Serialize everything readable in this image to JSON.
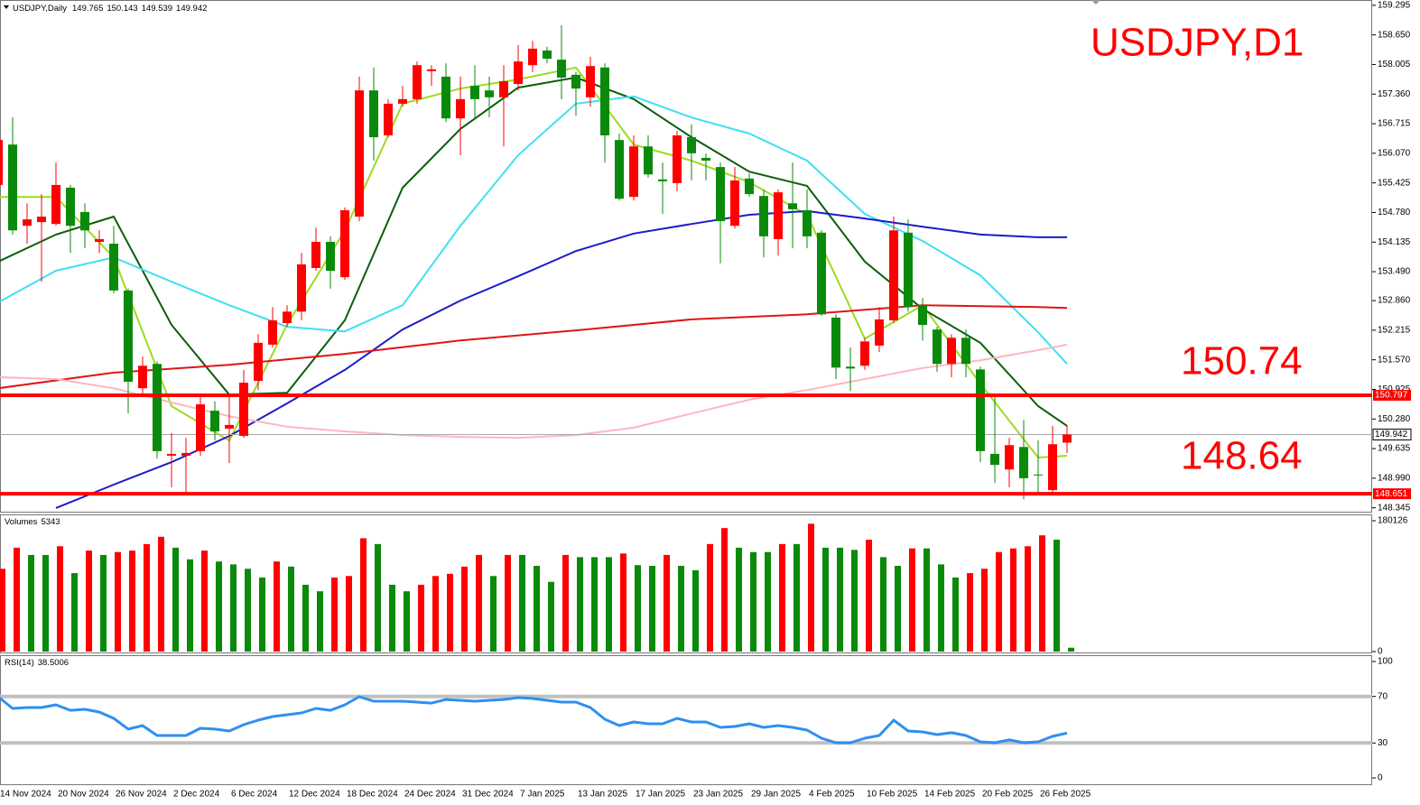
{
  "chart_data": [
    {
      "type": "candlestick",
      "title": "USDJPY,Daily",
      "watermark": "USDJPY,D1",
      "categories": [
        "14 Nov 2024",
        null,
        null,
        null,
        "20 Nov 2024",
        null,
        null,
        null,
        "26 Nov 2024",
        null,
        null,
        null,
        "2 Dec 2024",
        null,
        null,
        null,
        "6 Dec 2024",
        null,
        null,
        null,
        "12 Dec 2024",
        null,
        null,
        null,
        "18 Dec 2024",
        null,
        null,
        null,
        "24 Dec 2024",
        null,
        null,
        null,
        "31 Dec 2024",
        null,
        null,
        null,
        "7 Jan 2025",
        null,
        null,
        null,
        "13 Jan 2025",
        null,
        null,
        null,
        "17 Jan 2025",
        null,
        null,
        null,
        "23 Jan 2025",
        null,
        null,
        null,
        "29 Jan 2025",
        null,
        null,
        null,
        "4 Feb 2025",
        null,
        null,
        null,
        "10 Feb 2025",
        null,
        null,
        null,
        "14 Feb 2025",
        null,
        null,
        null,
        "20 Feb 2025",
        null,
        null,
        null,
        "26 Feb 2025",
        null,
        null
      ],
      "open": [
        155.38,
        156.26,
        154.49,
        154.57,
        154.53,
        155.32,
        154.79,
        154.14,
        154.1,
        153.08,
        150.95,
        151.48,
        149.48,
        149.48,
        149.58,
        150.46,
        150.07,
        149.91,
        151.11,
        151.9,
        152.37,
        152.62,
        153.57,
        154.14,
        153.37,
        154.69,
        157.44,
        156.46,
        157.15,
        157.25,
        157.86,
        157.74,
        156.83,
        157.54,
        157.44,
        157.29,
        157.58,
        157.99,
        158.31,
        158.11,
        157.78,
        157.29,
        157.94,
        156.36,
        155.12,
        156.22,
        155.5,
        155.42,
        156.42,
        155.97,
        155.77,
        154.49,
        155.52,
        155.14,
        154.2,
        154.98,
        154.83,
        154.34,
        152.49,
        151.42,
        151.44,
        151.88,
        152.43,
        154.34,
        152.76,
        152.23,
        151.48,
        152.05,
        151.36,
        149.52,
        149.18,
        149.67,
        149.07,
        148.73,
        149.765
      ],
      "high": [
        156.46,
        156.85,
        154.98,
        155.18,
        155.87,
        155.38,
        154.98,
        154.39,
        154.49,
        153.12,
        151.64,
        151.54,
        149.97,
        149.87,
        150.76,
        150.66,
        150.76,
        151.35,
        152.13,
        152.72,
        152.76,
        153.9,
        154.45,
        154.26,
        154.89,
        157.74,
        157.94,
        157.25,
        157.54,
        158.07,
        157.99,
        158.03,
        157.74,
        157.99,
        157.74,
        157.99,
        158.43,
        158.52,
        158.39,
        158.86,
        157.84,
        158.17,
        158.03,
        156.5,
        156.46,
        156.46,
        155.87,
        156.56,
        156.7,
        156.07,
        155.87,
        155.77,
        155.63,
        155.28,
        155.28,
        155.87,
        155.28,
        154.39,
        152.56,
        151.84,
        152.05,
        152.72,
        154.69,
        154.63,
        152.92,
        152.29,
        152.13,
        152.23,
        151.42,
        150.76,
        149.87,
        150.26,
        149.81,
        150.13,
        150.143
      ],
      "low": [
        155.28,
        154.3,
        154.1,
        153.27,
        154.49,
        153.9,
        154.0,
        153.9,
        153.02,
        150.4,
        150.79,
        149.42,
        148.79,
        148.65,
        149.48,
        149.81,
        149.32,
        149.87,
        150.91,
        151.84,
        152.29,
        152.43,
        153.51,
        153.12,
        153.31,
        154.59,
        155.91,
        156.42,
        157.09,
        157.15,
        157.54,
        156.75,
        156.03,
        156.85,
        156.85,
        156.22,
        157.44,
        157.84,
        158.03,
        157.25,
        156.89,
        157.09,
        155.87,
        155.04,
        155.04,
        155.54,
        154.75,
        155.24,
        155.48,
        155.48,
        153.67,
        154.43,
        155.12,
        153.8,
        153.84,
        154.0,
        154.0,
        152.53,
        151.15,
        150.89,
        151.35,
        151.74,
        152.37,
        152.62,
        151.99,
        151.31,
        151.19,
        151.19,
        149.34,
        148.89,
        148.79,
        148.53,
        148.63,
        148.63,
        149.539
      ],
      "close": [
        156.36,
        154.39,
        154.63,
        154.69,
        155.38,
        154.49,
        154.39,
        154.2,
        153.08,
        151.09,
        151.44,
        149.58,
        149.52,
        149.54,
        150.6,
        150.01,
        150.15,
        151.07,
        151.94,
        152.43,
        152.62,
        153.65,
        154.14,
        153.51,
        154.83,
        157.44,
        156.42,
        157.15,
        157.25,
        157.99,
        157.9,
        156.83,
        157.25,
        157.25,
        157.29,
        157.64,
        158.07,
        158.35,
        158.13,
        157.72,
        157.48,
        157.97,
        156.46,
        155.08,
        156.22,
        155.61,
        155.46,
        156.46,
        156.07,
        155.91,
        154.59,
        155.48,
        155.18,
        154.26,
        155.22,
        154.85,
        154.26,
        152.56,
        151.4,
        151.38,
        151.97,
        152.45,
        154.39,
        152.72,
        152.33,
        151.48,
        152.05,
        151.48,
        149.58,
        149.28,
        149.71,
        148.99,
        149.05,
        149.73,
        149.942
      ],
      "up_color": "#ff0000",
      "down_color": "#0a8a0a",
      "ylim": [
        148.26,
        159.41
      ],
      "yticks": [
        159.295,
        {
          "value": 158.65,
          "label": "158.650"
        },
        158.005,
        {
          "value": 157.36,
          "label": "157.360"
        },
        156.715,
        {
          "value": 156.07,
          "label": "156.070"
        },
        155.425,
        {
          "value": 154.78,
          "label": "154.780"
        },
        154.135,
        {
          "value": 153.49,
          "label": "153.490"
        },
        {
          "value": 152.86,
          "label": "152.860"
        },
        152.215,
        {
          "value": 151.57,
          "label": "151.570"
        },
        150.925,
        {
          "value": 150.28,
          "label": "150.280"
        },
        149.635,
        {
          "value": 148.99,
          "label": "148.990"
        },
        148.345
      ],
      "moving_averages": [
        {
          "color": "#9bdc1e",
          "x": [
            0,
            4,
            8,
            12,
            16,
            20,
            24,
            28,
            32,
            36,
            40,
            44,
            48,
            52,
            56,
            60,
            64,
            68,
            72,
            74
          ],
          "values": [
            155.12,
            155.12,
            153.8,
            150.56,
            149.81,
            152.33,
            154.39,
            157.15,
            157.48,
            157.68,
            157.94,
            156.26,
            155.91,
            155.44,
            154.73,
            152.03,
            152.76,
            151.05,
            149.44,
            149.48
          ]
        },
        {
          "color": "#0b5e0b",
          "x": [
            0,
            4,
            8,
            12,
            16,
            20,
            24,
            28,
            32,
            36,
            40,
            44,
            48,
            52,
            56,
            60,
            64,
            68,
            72,
            74
          ],
          "values": [
            153.71,
            154.3,
            154.69,
            152.33,
            150.81,
            150.85,
            152.43,
            155.32,
            156.6,
            157.5,
            157.72,
            157.25,
            156.42,
            155.67,
            155.36,
            153.71,
            152.68,
            151.94,
            150.56,
            150.13
          ]
        },
        {
          "color": "#3ee0f2",
          "x": [
            0,
            4,
            8,
            12,
            16,
            20,
            24,
            28,
            32,
            36,
            40,
            44,
            48,
            52,
            56,
            60,
            64,
            68,
            72,
            74
          ],
          "values": [
            152.82,
            153.51,
            153.8,
            153.27,
            152.76,
            152.29,
            152.19,
            152.76,
            154.49,
            156.03,
            157.15,
            157.31,
            156.85,
            156.5,
            155.91,
            154.75,
            154.16,
            153.41,
            152.17,
            151.48
          ]
        },
        {
          "color": "#1c1cc8",
          "x": [
            4,
            8,
            12,
            16,
            20,
            24,
            28,
            32,
            36,
            40,
            44,
            48,
            52,
            56,
            60,
            64,
            68,
            72,
            74
          ],
          "values": [
            148.34,
            148.85,
            149.34,
            149.91,
            150.62,
            151.35,
            152.23,
            152.86,
            153.39,
            153.94,
            154.32,
            154.53,
            154.73,
            154.81,
            154.65,
            154.47,
            154.3,
            154.24,
            154.24
          ]
        },
        {
          "color": "#e01515",
          "x": [
            0,
            8,
            16,
            24,
            32,
            40,
            48,
            56,
            64,
            72,
            74
          ],
          "values": [
            150.95,
            151.29,
            151.46,
            151.7,
            151.99,
            152.21,
            152.45,
            152.56,
            152.76,
            152.72,
            152.7
          ]
        },
        {
          "color": "#ffb6c1",
          "x": [
            0,
            4,
            8,
            12,
            16,
            20,
            24,
            28,
            32,
            36,
            40,
            44,
            48,
            52,
            56,
            60,
            64,
            68,
            72,
            74
          ],
          "values": [
            151.19,
            151.15,
            150.95,
            150.64,
            150.34,
            150.11,
            150.01,
            149.93,
            149.89,
            149.87,
            149.93,
            150.09,
            150.4,
            150.7,
            150.91,
            151.15,
            151.39,
            151.56,
            151.78,
            151.9
          ]
        }
      ],
      "levels": [
        {
          "value": 150.797,
          "color": "#ff0000"
        },
        {
          "value": 148.651,
          "color": "#ff0000"
        }
      ],
      "annotations": [
        "150.74",
        "148.64"
      ]
    },
    {
      "type": "bar",
      "title": "Volumes",
      "values": [
        114000,
        143000,
        133000,
        133000,
        145000,
        108000,
        139000,
        133000,
        137000,
        139000,
        148000,
        158000,
        143000,
        127000,
        139000,
        124000,
        120000,
        114000,
        102000,
        124000,
        117000,
        92000,
        83000,
        102000,
        104000,
        156000,
        148000,
        92000,
        83000,
        92000,
        104000,
        107000,
        117000,
        133000,
        104000,
        133000,
        133000,
        118000,
        96000,
        133000,
        130000,
        130000,
        130000,
        135000,
        119000,
        118000,
        133000,
        118000,
        112000,
        148000,
        170000,
        143000,
        137000,
        137000,
        148000,
        148000,
        176000,
        143000,
        143000,
        140000,
        154000,
        130000,
        118000,
        142000,
        142000,
        120000,
        102000,
        108000,
        114000,
        137000,
        142000,
        145000,
        160000,
        154000,
        5343
      ],
      "up_color": "#ff0000",
      "down_color": "#0a8a0a",
      "ylim": [
        0,
        180126
      ],
      "yticks": [
        180126,
        0
      ]
    },
    {
      "type": "line",
      "title": "RSI(14)",
      "color": "#2f8ff0",
      "values": [
        69.8,
        59.7,
        60.5,
        60.5,
        62.8,
        58.1,
        58.9,
        56.6,
        51.2,
        41.9,
        45.0,
        36.4,
        36.4,
        36.4,
        42.6,
        41.9,
        40.3,
        45.7,
        49.6,
        52.7,
        54.3,
        55.8,
        59.7,
        58.1,
        62.8,
        69.8,
        65.9,
        65.9,
        65.9,
        65.1,
        64.3,
        67.4,
        66.7,
        65.9,
        66.7,
        67.4,
        69.0,
        68.2,
        66.7,
        65.1,
        65.1,
        60.5,
        50.4,
        45.0,
        48.1,
        46.5,
        46.5,
        51.2,
        48.1,
        48.1,
        43.4,
        44.2,
        46.5,
        43.4,
        45.0,
        43.4,
        41.1,
        34.1,
        30.2,
        30.2,
        34.1,
        36.4,
        49.6,
        40.3,
        39.5,
        37.2,
        38.8,
        36.4,
        31.0,
        30.2,
        32.6,
        30.2,
        31.0,
        35.7,
        38.5006
      ],
      "ylim": [
        0,
        100
      ],
      "yticks": [
        100,
        70,
        30,
        0
      ],
      "level_lines": [
        70,
        30
      ]
    }
  ]
}
